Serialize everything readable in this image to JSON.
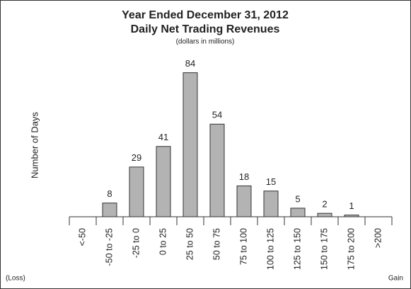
{
  "chart_data": {
    "type": "bar",
    "title": [
      "Year Ended December 31, 2012",
      "Daily Net Trading Revenues"
    ],
    "subtitle": "(dollars in millions)",
    "y_label": "Number of Days",
    "annotations": [
      "(Loss)",
      "Gain"
    ],
    "categories": [
      "<-50",
      "-50 to -25",
      "-25 to 0",
      "0 to 25",
      "25 to 50",
      "50 to 75",
      "75 to 100",
      "100 to 125",
      "125 to 150",
      "150 to 175",
      "175 to 200",
      ">200"
    ],
    "values": [
      0,
      8,
      29,
      41,
      84,
      54,
      18,
      15,
      5,
      2,
      1,
      0
    ],
    "color": "#b3b3b3",
    "ylim": [
      0,
      95
    ]
  }
}
